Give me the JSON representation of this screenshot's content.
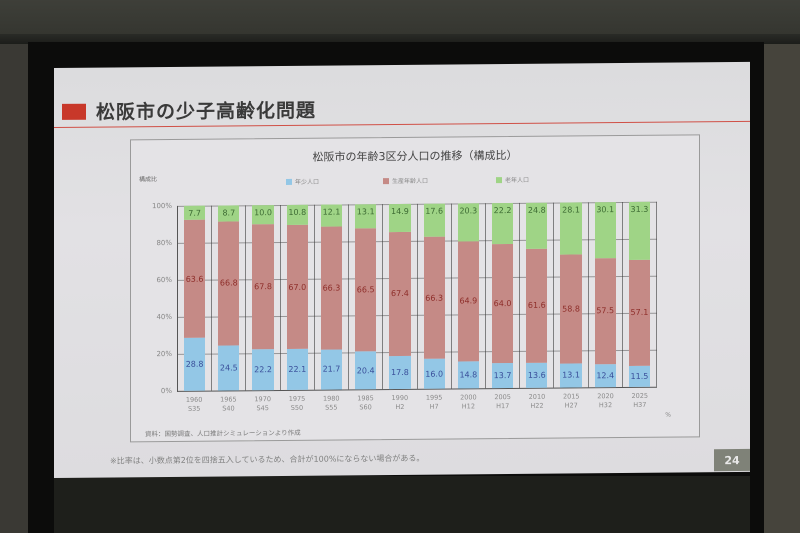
{
  "slide": {
    "title": "松阪市の少子高齢化問題",
    "page_number": "24",
    "footnote": "※比率は、小数点第2位を四捨五入しているため、合計が100%にならない場合がある。",
    "accent_color": "#c8382a"
  },
  "chart": {
    "title": "松阪市の年齢3区分人口の推移（構成比）",
    "y_axis_label": "構成比",
    "source": "資料：国勢調査、人口推計シミュレーションより作成",
    "unit_mark": "%",
    "y_ticks": [
      "100%",
      "80%",
      "60%",
      "40%",
      "20%",
      "0%"
    ],
    "legend": [
      {
        "label": "年少人口",
        "color": "#93c7e6"
      },
      {
        "label": "生産年齢人口",
        "color": "#c58a86"
      },
      {
        "label": "老年人口",
        "color": "#9fd486"
      }
    ]
  },
  "chart_data": {
    "type": "bar",
    "stacked": true,
    "title": "松阪市の年齢3区分人口の推移（構成比）",
    "xlabel": "",
    "ylabel": "構成比",
    "ylim": [
      0,
      100
    ],
    "y_ticks": [
      0,
      20,
      40,
      60,
      80,
      100
    ],
    "grid": true,
    "legend_position": "top",
    "categories": [
      "1960 S35",
      "1965 S40",
      "1970 S45",
      "1975 S50",
      "1980 S55",
      "1985 S60",
      "1990 H2",
      "1995 H7",
      "2000 H12",
      "2005 H17",
      "2010 H22",
      "2015 H27",
      "2020 H32",
      "2025 H37"
    ],
    "category_years": [
      "1960",
      "1965",
      "1970",
      "1975",
      "1980",
      "1985",
      "1990",
      "1995",
      "2000",
      "2005",
      "2010",
      "2015",
      "2020",
      "2025"
    ],
    "category_eras": [
      "S35",
      "S40",
      "S45",
      "S50",
      "S55",
      "S60",
      "H2",
      "H7",
      "H12",
      "H17",
      "H22",
      "H27",
      "H32",
      "H37"
    ],
    "series": [
      {
        "name": "年少人口",
        "color": "#93c7e6",
        "values": [
          28.8,
          24.5,
          22.2,
          22.1,
          21.7,
          20.4,
          17.8,
          16.0,
          14.8,
          13.7,
          13.6,
          13.1,
          12.4,
          11.5
        ]
      },
      {
        "name": "生産年齢人口",
        "color": "#c58a86",
        "values": [
          63.6,
          66.8,
          67.8,
          67.0,
          66.3,
          66.5,
          67.4,
          66.3,
          64.9,
          64.0,
          61.6,
          58.8,
          57.5,
          57.1
        ]
      },
      {
        "name": "老年人口",
        "color": "#9fd486",
        "values": [
          7.7,
          8.7,
          10.0,
          10.8,
          12.1,
          13.1,
          14.9,
          17.6,
          20.3,
          22.2,
          24.8,
          28.1,
          30.1,
          31.3
        ]
      }
    ]
  }
}
